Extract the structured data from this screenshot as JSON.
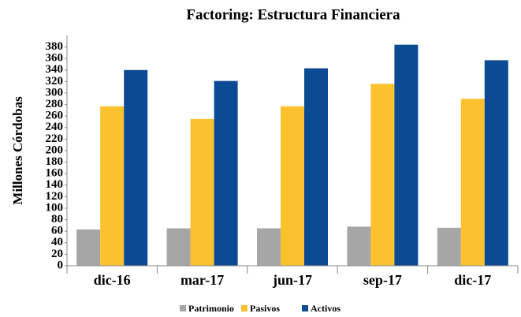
{
  "chart_data": {
    "type": "bar",
    "title": "Factoring: Estructura Financiera",
    "y_label": "Millones Córdobas",
    "categories": [
      "dic-16",
      "mar-17",
      "jun-17",
      "sep-17",
      "dic-17"
    ],
    "series": [
      {
        "name": "Patrimonio",
        "color": "#a6a6a6",
        "values": [
          63,
          65,
          65,
          68,
          66
        ]
      },
      {
        "name": "Pasivos",
        "color": "#fcc12e",
        "values": [
          277,
          255,
          277,
          316,
          290
        ]
      },
      {
        "name": "Activos",
        "color": "#0d4a94",
        "values": [
          340,
          321,
          343,
          384,
          357
        ]
      }
    ],
    "ylim": [
      0,
      400
    ],
    "yticks": [
      0,
      20,
      40,
      60,
      80,
      100,
      120,
      140,
      160,
      180,
      200,
      220,
      240,
      260,
      280,
      300,
      320,
      340,
      360,
      380
    ],
    "grid": false,
    "legend": "bottom"
  }
}
